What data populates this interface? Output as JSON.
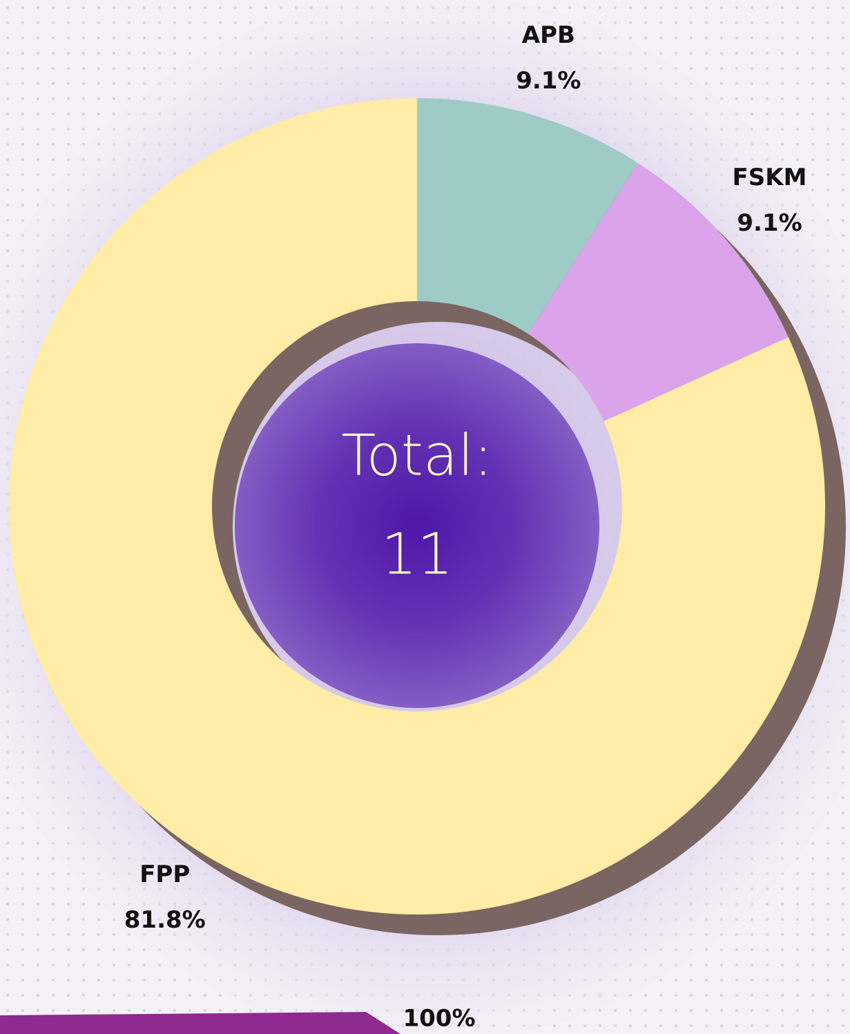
{
  "chart_data": {
    "type": "donut",
    "categories": [
      "APB",
      "FSKM",
      "FPP"
    ],
    "values": [
      9.1,
      9.1,
      81.8
    ],
    "value_labels": [
      "9.1%",
      "9.1%",
      "81.8%"
    ],
    "colors": [
      "#9fcbc6",
      "#dba4ea",
      "#ffeca6"
    ],
    "center_title": "Total:",
    "center_value": 11,
    "footer_label": "100%"
  }
}
